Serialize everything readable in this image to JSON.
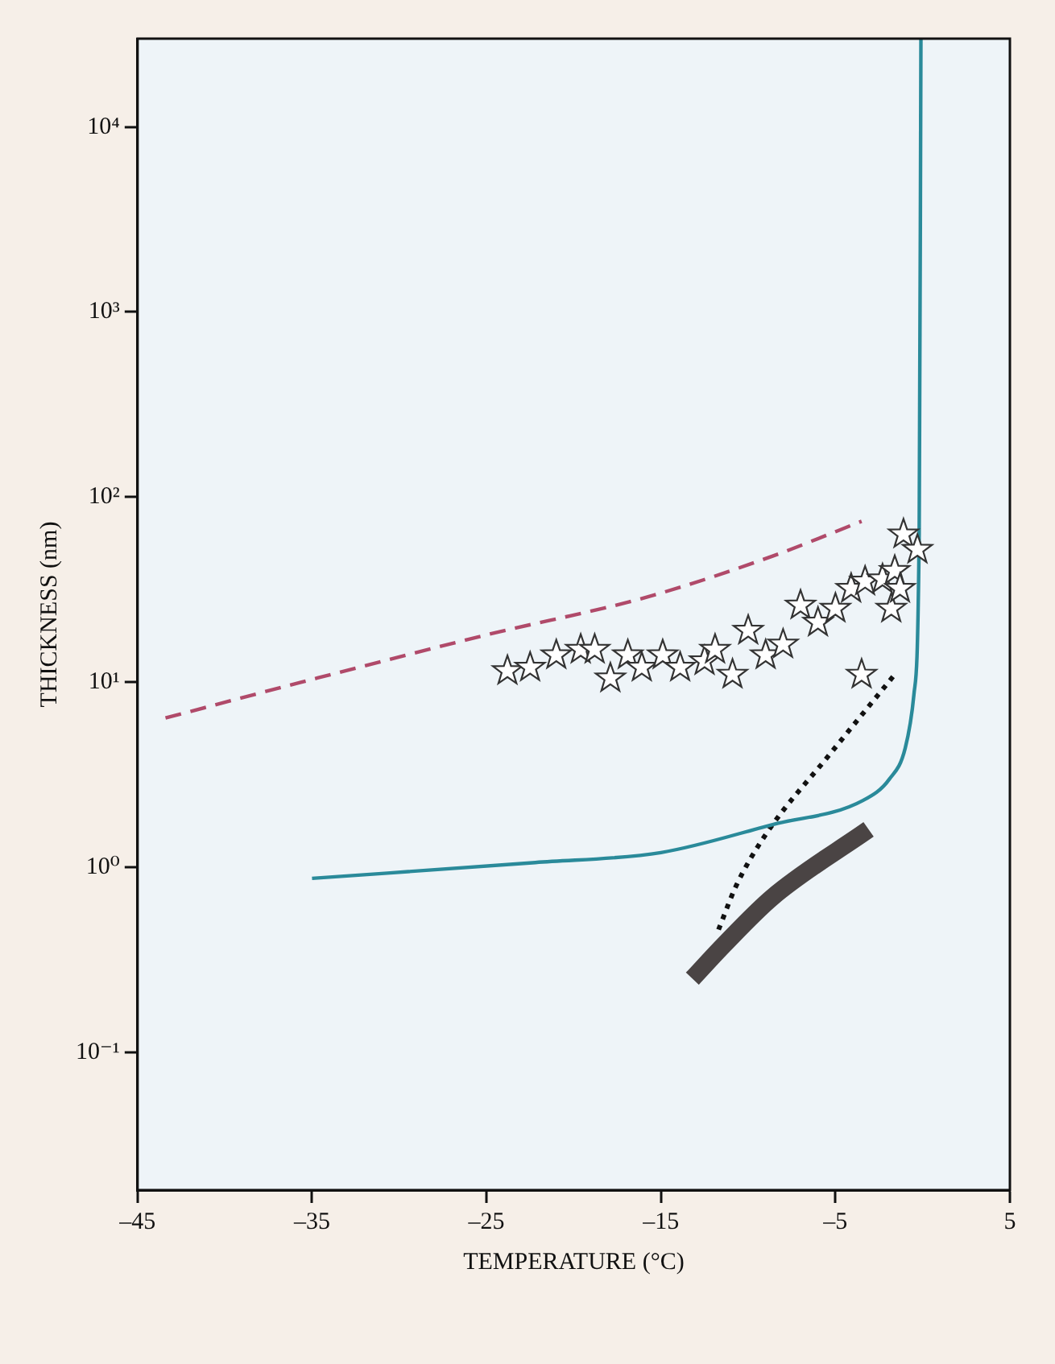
{
  "chart_data": {
    "type": "line",
    "xlabel": "TEMPERATURE (°C)",
    "ylabel": "THICKNESS (nm)",
    "log": "y",
    "grid": false,
    "legend": false,
    "xlim": [
      -45,
      5
    ],
    "xticks": [
      {
        "value": -45,
        "label": "–45"
      },
      {
        "value": -35,
        "label": "–35"
      },
      {
        "value": -25,
        "label": "–25"
      },
      {
        "value": -15,
        "label": "–15"
      },
      {
        "value": -5,
        "label": "–5"
      },
      5
    ],
    "ylim": [
      0.018,
      30000
    ],
    "yticks": [
      {
        "value": 0.1,
        "label": "10⁻¹"
      },
      {
        "value": 1,
        "label": "10⁰"
      },
      {
        "value": 10,
        "label": "10¹"
      },
      {
        "value": 100,
        "label": "10²"
      },
      {
        "value": 1000,
        "label": "10³"
      },
      {
        "value": 10000,
        "label": "10⁴"
      }
    ],
    "series": [
      {
        "type": "scatter",
        "marker": "star",
        "color": "#333333",
        "x": [
          -23.8,
          -22.5,
          -21.0,
          -19.6,
          -18.8,
          -17.9,
          -16.9,
          -16.1,
          -14.9,
          -13.9,
          -12.5,
          -11.9,
          -10.9,
          -10.0,
          -9.0,
          -8.0,
          -7.0,
          -6.0,
          -5.0,
          -4.1,
          -3.3,
          -2.3,
          -1.6,
          -1.1,
          -0.3,
          -1.8,
          -1.3,
          -3.5
        ],
        "values": [
          11.5,
          12,
          14,
          15,
          15,
          10.5,
          14,
          12,
          14,
          12,
          13,
          15,
          11,
          19,
          14,
          16,
          26,
          21,
          25,
          32,
          35,
          36,
          40,
          63,
          52,
          25,
          32,
          11
        ]
      },
      {
        "line_style": "dashed",
        "color": "#b04a6a",
        "x": [
          -43.4,
          -35.6,
          -25,
          -15.7,
          -8.6,
          -3.5
        ],
        "values": [
          6.4,
          10,
          18,
          29,
          48,
          74
        ]
      },
      {
        "line_style": "solid",
        "color": "#2a8a9a",
        "x": [
          -35,
          -22.2,
          -15,
          -8.6,
          -3.4,
          -1.9,
          -1,
          -0.5,
          -0.2,
          -0.1
        ],
        "values": [
          0.87,
          1.06,
          1.2,
          1.7,
          2.3,
          3,
          4.4,
          8.6,
          63,
          30000
        ]
      },
      {
        "line_style": "dotted",
        "color": "#111111",
        "x": [
          -11.7,
          -10.7,
          -9.0,
          -5.3,
          -1.6
        ],
        "values": [
          0.46,
          0.79,
          1.5,
          4.1,
          11
        ]
      },
      {
        "line_style": "solid",
        "color": "#4a4444",
        "x": [
          -13.2,
          -11.4,
          -8.6,
          -3.1
        ],
        "values": [
          0.25,
          0.38,
          0.69,
          1.6
        ]
      }
    ]
  }
}
